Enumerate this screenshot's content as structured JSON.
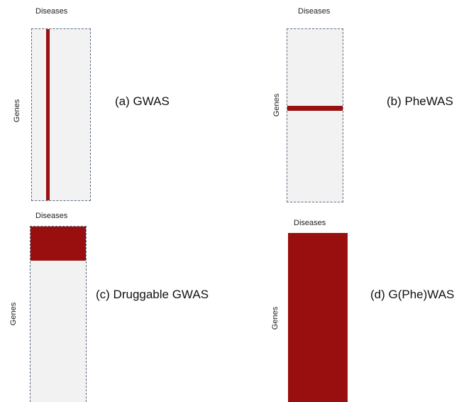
{
  "colors": {
    "highlight": "#9a1010",
    "panel_fill": "#f2f2f2",
    "panel_border": "#5b6b80"
  },
  "panels": [
    {
      "id": "a",
      "caption": "(a) GWAS",
      "x_axis_label": "Diseases",
      "y_axis_label": "Genes",
      "highlight": "single disease column (all genes)"
    },
    {
      "id": "b",
      "caption": "(b) PheWAS",
      "x_axis_label": "Diseases",
      "y_axis_label": "Genes",
      "highlight": "single gene row (all diseases)"
    },
    {
      "id": "c",
      "caption": "(c) Druggable GWAS",
      "x_axis_label": "Diseases",
      "y_axis_label": "Genes",
      "highlight": "subset of druggable gene rows (all diseases)"
    },
    {
      "id": "d",
      "caption": "(d) G(Phe)WAS",
      "x_axis_label": "Diseases",
      "y_axis_label": "Genes",
      "highlight": "entire gene x disease matrix"
    }
  ]
}
